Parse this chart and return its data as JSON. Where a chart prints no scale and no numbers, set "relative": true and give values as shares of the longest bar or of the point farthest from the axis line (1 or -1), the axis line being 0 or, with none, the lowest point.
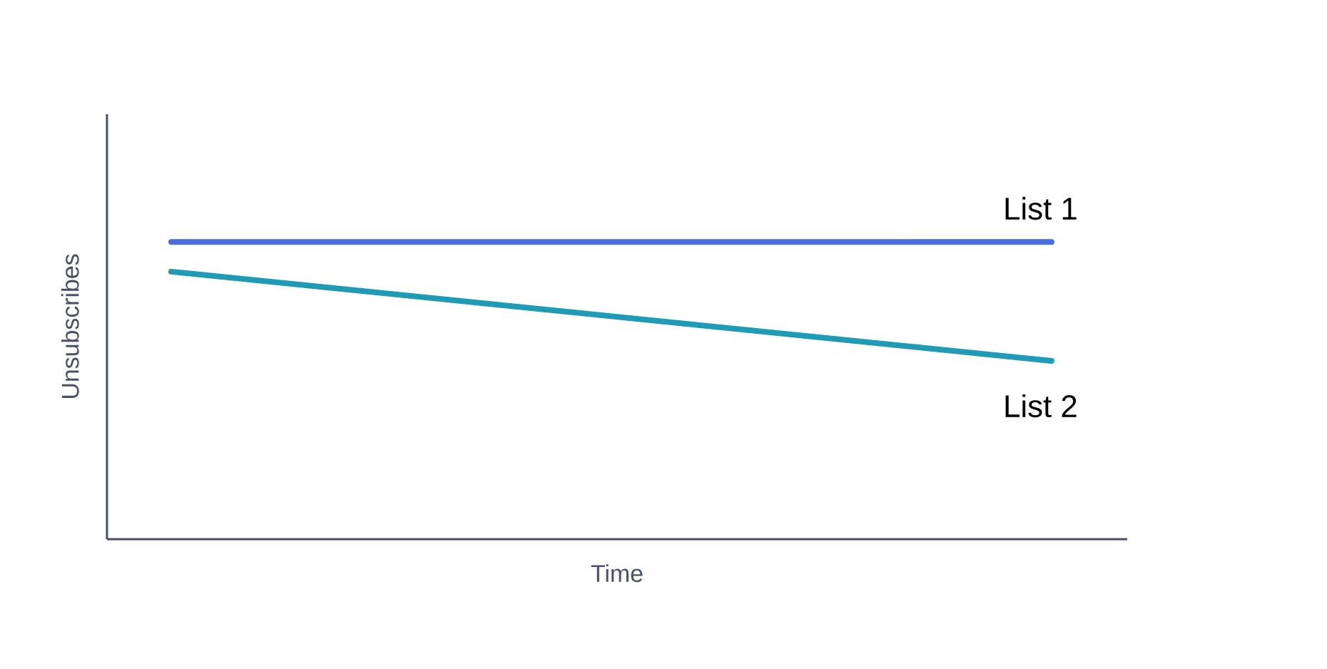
{
  "chart_data": {
    "type": "line",
    "relative": true,
    "xlabel": "Time",
    "ylabel": "Unsubscribes",
    "categories": [
      null,
      null
    ],
    "series": [
      {
        "name": "List 1",
        "color": "#4a6ee0",
        "values": [
          1,
          1
        ]
      },
      {
        "name": "List 2",
        "color": "#1f9bb5",
        "values": [
          0.9,
          0.6
        ]
      }
    ]
  }
}
